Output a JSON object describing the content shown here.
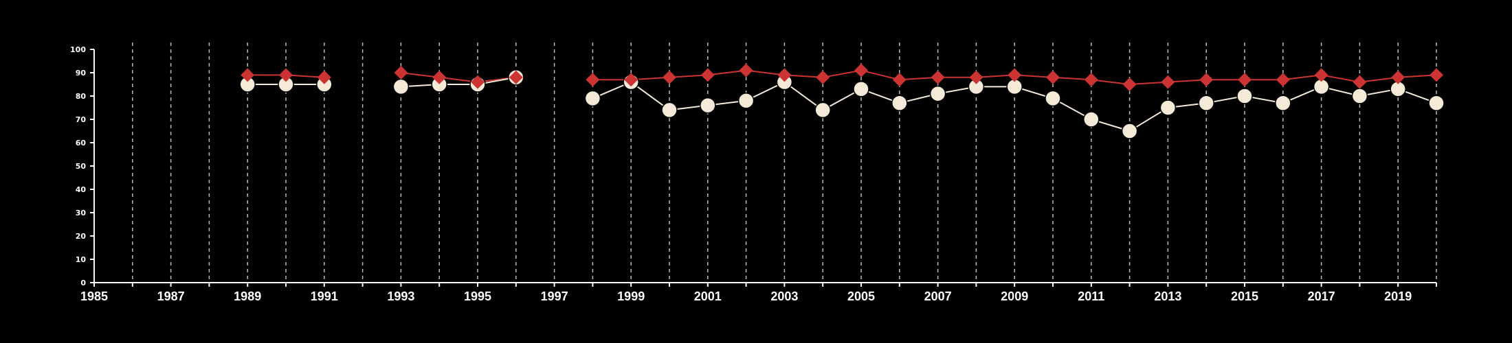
{
  "chart_data": {
    "type": "line",
    "title": "",
    "xlabel": "",
    "ylabel": "",
    "xlim": [
      1985,
      2020
    ],
    "ylim": [
      0,
      100
    ],
    "x_ticks": [
      1985,
      1987,
      1989,
      1991,
      1993,
      1995,
      1997,
      1999,
      2001,
      2003,
      2005,
      2007,
      2009,
      2011,
      2013,
      2015,
      2017,
      2019
    ],
    "y_ticks": [
      0,
      10,
      20,
      30,
      40,
      50,
      60,
      70,
      80,
      90,
      100
    ],
    "x_tick_labels": [
      "1985",
      "1987",
      "1989",
      "1991",
      "1993",
      "1995",
      "1997",
      "1999",
      "2001",
      "2003",
      "2005",
      "2007",
      "2009",
      "2011",
      "2013",
      "2015",
      "2017",
      "2019"
    ],
    "y_tick_labels": [
      "0",
      "10",
      "20",
      "30",
      "40",
      "50",
      "60",
      "70",
      "80",
      "90",
      "100"
    ],
    "grid": {
      "vertical_dashed": true,
      "every_year": true
    },
    "legend": "none",
    "series": [
      {
        "color": "#cc3333",
        "marker": "diamond",
        "segments": [
          [
            [
              1989,
              89
            ],
            [
              1990,
              89
            ],
            [
              1991,
              88
            ]
          ],
          [
            [
              1993,
              90
            ],
            [
              1994,
              88
            ],
            [
              1995,
              86
            ],
            [
              1996,
              88
            ]
          ],
          [
            [
              1998,
              87
            ],
            [
              1999,
              87
            ],
            [
              2000,
              88
            ],
            [
              2001,
              89
            ],
            [
              2002,
              91
            ],
            [
              2003,
              89
            ],
            [
              2004,
              88
            ],
            [
              2005,
              91
            ],
            [
              2006,
              87
            ],
            [
              2007,
              88
            ],
            [
              2008,
              88
            ],
            [
              2009,
              89
            ],
            [
              2010,
              88
            ],
            [
              2011,
              87
            ],
            [
              2012,
              85
            ],
            [
              2013,
              86
            ],
            [
              2014,
              87
            ],
            [
              2015,
              87
            ],
            [
              2016,
              87
            ],
            [
              2017,
              89
            ],
            [
              2018,
              86
            ],
            [
              2019,
              88
            ],
            [
              2020,
              89
            ]
          ]
        ]
      },
      {
        "color": "#f5ead8",
        "marker": "circle",
        "segments": [
          [
            [
              1989,
              85
            ],
            [
              1990,
              85
            ],
            [
              1991,
              85
            ]
          ],
          [
            [
              1993,
              84
            ],
            [
              1994,
              85
            ],
            [
              1995,
              85
            ],
            [
              1996,
              88
            ]
          ],
          [
            [
              1998,
              79
            ],
            [
              1999,
              86
            ],
            [
              2000,
              74
            ],
            [
              2001,
              76
            ],
            [
              2002,
              78
            ],
            [
              2003,
              86
            ],
            [
              2004,
              74
            ],
            [
              2005,
              83
            ],
            [
              2006,
              77
            ],
            [
              2007,
              81
            ],
            [
              2008,
              84
            ],
            [
              2009,
              84
            ],
            [
              2010,
              79
            ],
            [
              2011,
              70
            ],
            [
              2012,
              65
            ],
            [
              2013,
              75
            ],
            [
              2014,
              77
            ],
            [
              2015,
              80
            ],
            [
              2016,
              77
            ],
            [
              2017,
              84
            ],
            [
              2018,
              80
            ],
            [
              2019,
              83
            ],
            [
              2020,
              77
            ]
          ]
        ]
      }
    ]
  }
}
